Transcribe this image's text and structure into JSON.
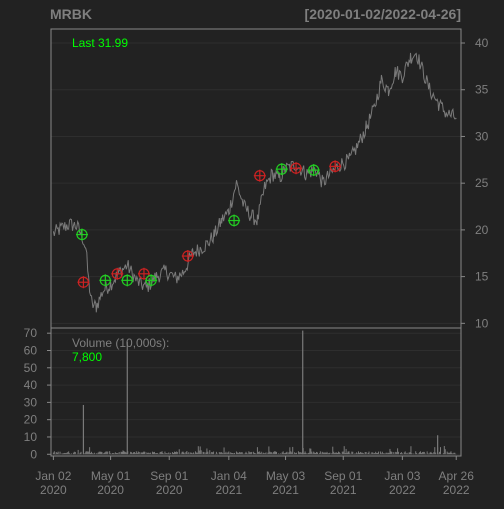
{
  "header": {
    "symbol": "MRBK",
    "date_range": "[2020-01-02/2022-04-26]"
  },
  "colors": {
    "background": "#222222",
    "panel_border": "#888888",
    "grid": "#2e2e2e",
    "price_line": "#7a7a7a",
    "volume_bar": "#7a7a7a",
    "text_muted": "#7f7f7f",
    "text_bright": "#aaaaaa",
    "last_value": "#00ff00",
    "buy_marker": "#22cc22",
    "sell_marker": "#cc2222"
  },
  "chart_data": [
    {
      "type": "line",
      "name": "price",
      "annotation": {
        "label": "Last",
        "value": "31.99"
      },
      "ylim": [
        9.5,
        41.5
      ],
      "y_ticks": [
        10,
        15,
        20,
        25,
        30,
        35,
        40
      ],
      "x_range": [
        "2019-12-28",
        "2022-05-06"
      ],
      "x_tick_labels": [
        {
          "date": "2020-01-02",
          "month": "Jan 02",
          "year": "2020"
        },
        {
          "date": "2020-05-01",
          "month": "May 01",
          "year": "2020"
        },
        {
          "date": "2020-09-01",
          "month": "Sep 01",
          "year": "2020"
        },
        {
          "date": "2021-01-04",
          "month": "Jan 04",
          "year": "2021"
        },
        {
          "date": "2021-05-03",
          "month": "May 03",
          "year": "2021"
        },
        {
          "date": "2021-09-01",
          "month": "Sep 01",
          "year": "2021"
        },
        {
          "date": "2022-01-03",
          "month": "Jan 03",
          "year": "2022"
        },
        {
          "date": "2022-04-26",
          "month": "Apr 26",
          "year": "2022"
        }
      ],
      "series_points": [
        [
          "2020-01-02",
          19.6
        ],
        [
          "2020-01-20",
          20.2
        ],
        [
          "2020-02-05",
          20.6
        ],
        [
          "2020-02-20",
          20.4
        ],
        [
          "2020-03-02",
          19.4
        ],
        [
          "2020-03-10",
          18.0
        ],
        [
          "2020-03-16",
          14.5
        ],
        [
          "2020-03-23",
          12.0
        ],
        [
          "2020-04-01",
          11.8
        ],
        [
          "2020-04-15",
          13.5
        ],
        [
          "2020-05-01",
          14.2
        ],
        [
          "2020-05-20",
          15.5
        ],
        [
          "2020-06-05",
          16.2
        ],
        [
          "2020-06-25",
          14.5
        ],
        [
          "2020-07-15",
          13.8
        ],
        [
          "2020-08-05",
          15.0
        ],
        [
          "2020-08-25",
          15.6
        ],
        [
          "2020-09-15",
          14.8
        ],
        [
          "2020-10-01",
          15.5
        ],
        [
          "2020-10-20",
          17.5
        ],
        [
          "2020-11-05",
          18.0
        ],
        [
          "2020-11-20",
          18.5
        ],
        [
          "2020-12-05",
          19.5
        ],
        [
          "2020-12-20",
          21.0
        ],
        [
          "2021-01-04",
          22.0
        ],
        [
          "2021-01-20",
          25.0
        ],
        [
          "2021-02-05",
          22.5
        ],
        [
          "2021-02-20",
          21.5
        ],
        [
          "2021-03-05",
          21.0
        ],
        [
          "2021-03-20",
          24.5
        ],
        [
          "2021-04-05",
          26.0
        ],
        [
          "2021-04-20",
          25.5
        ],
        [
          "2021-05-03",
          26.5
        ],
        [
          "2021-05-25",
          27.0
        ],
        [
          "2021-06-15",
          26.0
        ],
        [
          "2021-07-05",
          26.5
        ],
        [
          "2021-07-20",
          25.0
        ],
        [
          "2021-08-05",
          26.0
        ],
        [
          "2021-08-25",
          27.0
        ],
        [
          "2021-09-15",
          27.5
        ],
        [
          "2021-10-01",
          29.0
        ],
        [
          "2021-10-20",
          31.0
        ],
        [
          "2021-11-05",
          33.0
        ],
        [
          "2021-11-20",
          36.0
        ],
        [
          "2021-12-05",
          35.0
        ],
        [
          "2021-12-20",
          37.0
        ],
        [
          "2022-01-03",
          36.5
        ],
        [
          "2022-01-20",
          38.5
        ],
        [
          "2022-02-01",
          39.0
        ],
        [
          "2022-02-15",
          37.0
        ],
        [
          "2022-03-01",
          35.0
        ],
        [
          "2022-03-20",
          33.5
        ],
        [
          "2022-04-05",
          32.5
        ],
        [
          "2022-04-26",
          31.99
        ]
      ],
      "buy_markers": [
        [
          "2020-03-02",
          19.5
        ],
        [
          "2020-04-20",
          14.6
        ],
        [
          "2020-06-05",
          14.6
        ],
        [
          "2020-07-25",
          14.6
        ],
        [
          "2021-01-15",
          21.0
        ],
        [
          "2021-04-25",
          26.5
        ],
        [
          "2021-07-01",
          26.4
        ]
      ],
      "sell_markers": [
        [
          "2020-03-05",
          14.4
        ],
        [
          "2020-05-15",
          15.3
        ],
        [
          "2020-07-10",
          15.3
        ],
        [
          "2020-10-10",
          17.2
        ],
        [
          "2021-03-10",
          25.8
        ],
        [
          "2021-05-25",
          26.6
        ],
        [
          "2021-08-15",
          26.8
        ]
      ]
    },
    {
      "type": "bar",
      "name": "volume",
      "label": "Volume (10,000s):",
      "last_value": "7,800",
      "ylim": [
        -1,
        73
      ],
      "y_ticks": [
        0,
        10,
        20,
        30,
        40,
        50,
        60,
        70
      ],
      "spikes": [
        [
          "2020-03-05",
          28.5
        ],
        [
          "2020-06-05",
          65.0
        ],
        [
          "2021-06-08",
          71.5
        ],
        [
          "2022-03-18",
          11.0
        ]
      ]
    }
  ]
}
